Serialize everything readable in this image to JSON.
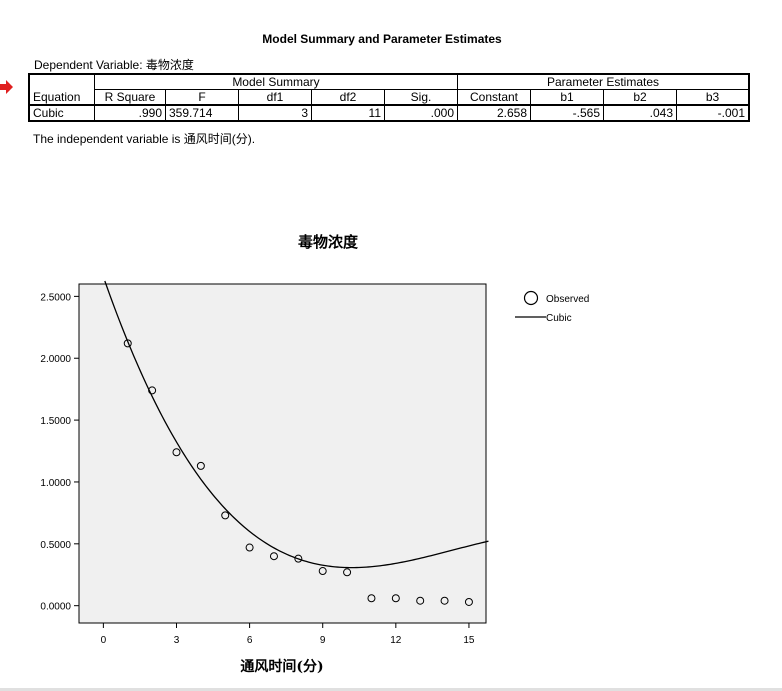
{
  "table": {
    "title": "Model Summary and Parameter Estimates",
    "dependent": "Dependent Variable: 毒物浓度",
    "group_model_summary": "Model Summary",
    "group_parameter_estimates": "Parameter Estimates",
    "columns": [
      "Equation",
      "R Square",
      "F",
      "df1",
      "df2",
      "Sig.",
      "Constant",
      "b1",
      "b2",
      "b3"
    ],
    "row": {
      "equation": "Cubic",
      "r_square": ".990",
      "f": "359.714",
      "df1": "3",
      "df2": "11",
      "sig": ".000",
      "constant": "2.658",
      "b1": "-.565",
      "b2": ".043",
      "b3": "-.001"
    },
    "footnote": "The independent variable is 通风时间(分)."
  },
  "colors": {
    "arrow": "#e02020",
    "plot_bg": "#f0f0f0",
    "line": "#000000"
  },
  "chart_data": {
    "type": "scatter",
    "title": "毒物浓度",
    "xlabel": "通风时间(分)",
    "ylabel": "",
    "xlim": [
      -1,
      15.7
    ],
    "ylim": [
      -0.14,
      2.6
    ],
    "x_ticks": [
      0,
      3,
      6,
      9,
      12,
      15
    ],
    "x_tick_labels": [
      "0",
      "3",
      "6",
      "9",
      "12",
      "15"
    ],
    "y_ticks": [
      0,
      0.5,
      1.0,
      1.5,
      2.0,
      2.5
    ],
    "y_tick_labels": [
      "0.0000",
      "0.5000",
      "1.0000",
      "1.5000",
      "2.0000",
      "2.5000"
    ],
    "legend_position": "top-right",
    "grid": false,
    "series": [
      {
        "name": "Observed",
        "kind": "points",
        "x": [
          1,
          2,
          3,
          4,
          5,
          6,
          7,
          8,
          9,
          10,
          11,
          12,
          13,
          14,
          15
        ],
        "y": [
          2.12,
          1.74,
          1.24,
          1.13,
          0.73,
          0.47,
          0.4,
          0.38,
          0.28,
          0.27,
          0.06,
          0.06,
          0.04,
          0.04,
          0.03
        ]
      },
      {
        "name": "Cubic",
        "kind": "line",
        "coefficients": {
          "constant": 2.658,
          "b1": -0.565,
          "b2": 0.043,
          "b3": -0.001
        },
        "x_range": [
          0.06,
          15.8
        ]
      }
    ]
  }
}
